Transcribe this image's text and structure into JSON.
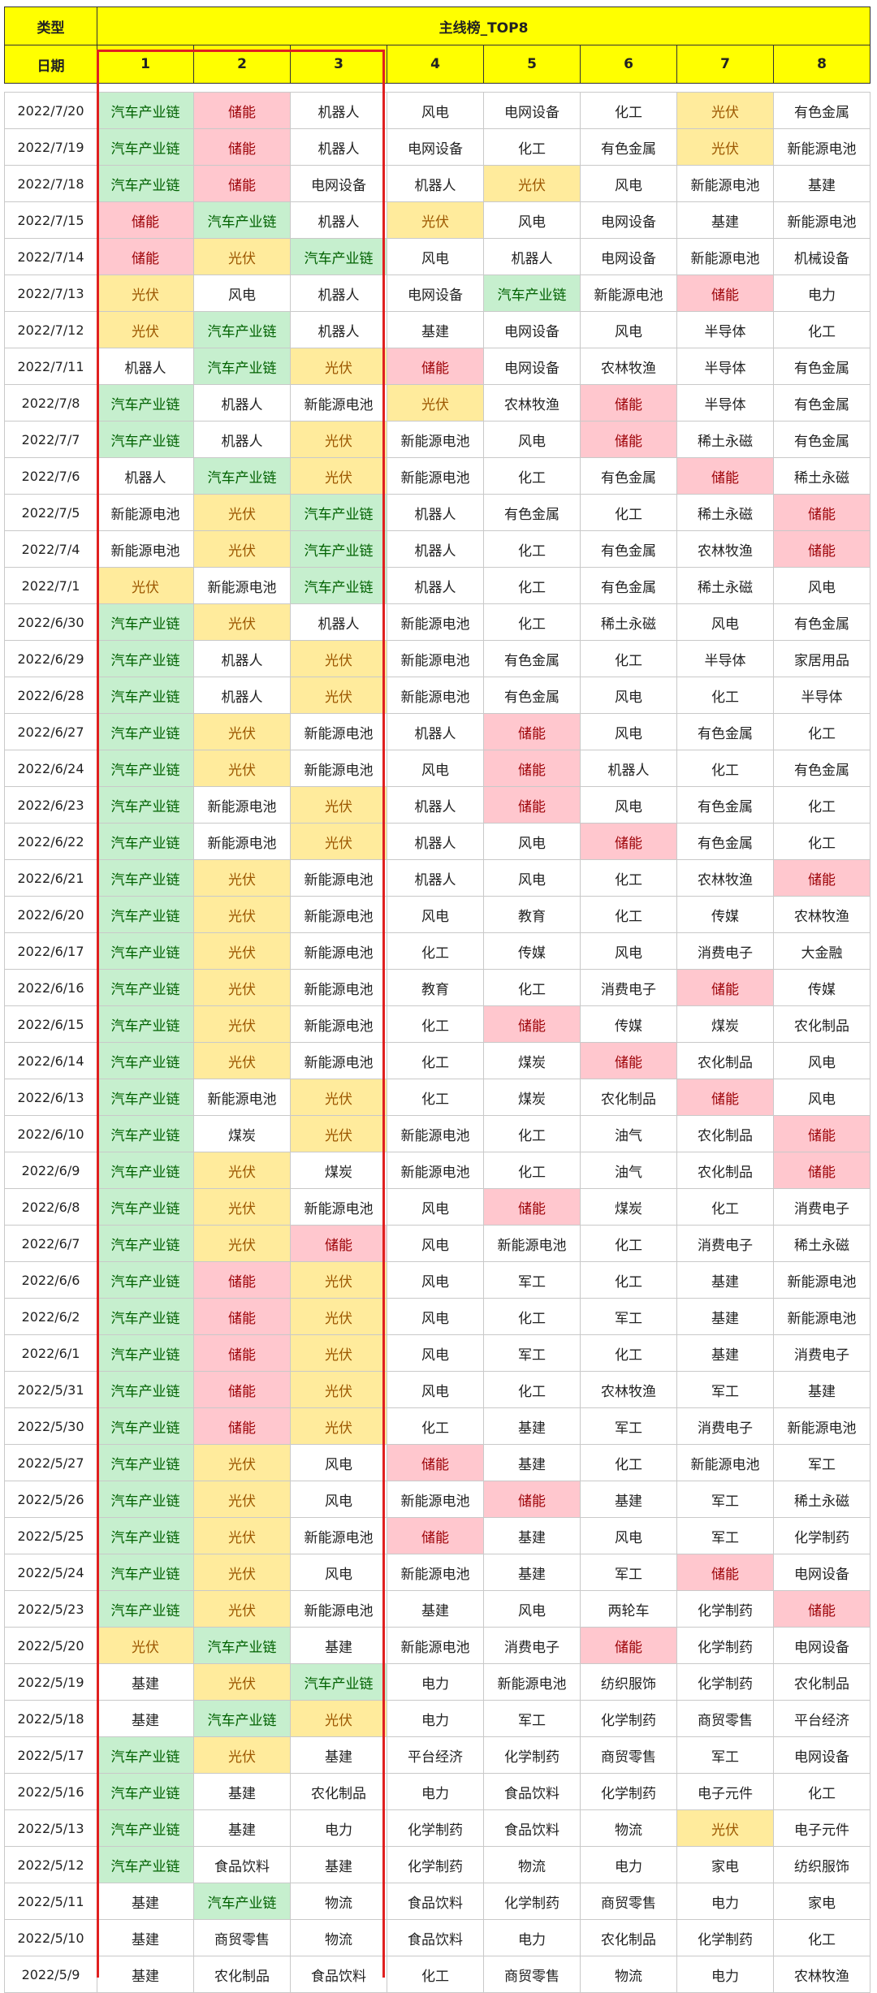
{
  "header": {
    "type_label": "类型",
    "title": "主线榜_TOP8",
    "date_label": "日期",
    "ranks": [
      "1",
      "2",
      "3",
      "4",
      "5",
      "6",
      "7",
      "8"
    ]
  },
  "highlight_colors": {
    "汽车产业链": "#c6efce",
    "光伏": "#ffeb9c",
    "储能": "#ffc7ce"
  },
  "rows": [
    {
      "date": "2022/7/20",
      "cells": [
        "汽车产业链",
        "储能",
        "机器人",
        "风电",
        "电网设备",
        "化工",
        "光伏",
        "有色金属"
      ]
    },
    {
      "date": "2022/7/19",
      "cells": [
        "汽车产业链",
        "储能",
        "机器人",
        "电网设备",
        "化工",
        "有色金属",
        "光伏",
        "新能源电池"
      ]
    },
    {
      "date": "2022/7/18",
      "cells": [
        "汽车产业链",
        "储能",
        "电网设备",
        "机器人",
        "光伏",
        "风电",
        "新能源电池",
        "基建"
      ]
    },
    {
      "date": "2022/7/15",
      "cells": [
        "储能",
        "汽车产业链",
        "机器人",
        "光伏",
        "风电",
        "电网设备",
        "基建",
        "新能源电池"
      ]
    },
    {
      "date": "2022/7/14",
      "cells": [
        "储能",
        "光伏",
        "汽车产业链",
        "风电",
        "机器人",
        "电网设备",
        "新能源电池",
        "机械设备"
      ]
    },
    {
      "date": "2022/7/13",
      "cells": [
        "光伏",
        "风电",
        "机器人",
        "电网设备",
        "汽车产业链",
        "新能源电池",
        "储能",
        "电力"
      ]
    },
    {
      "date": "2022/7/12",
      "cells": [
        "光伏",
        "汽车产业链",
        "机器人",
        "基建",
        "电网设备",
        "风电",
        "半导体",
        "化工"
      ]
    },
    {
      "date": "2022/7/11",
      "cells": [
        "机器人",
        "汽车产业链",
        "光伏",
        "储能",
        "电网设备",
        "农林牧渔",
        "半导体",
        "有色金属"
      ]
    },
    {
      "date": "2022/7/8",
      "cells": [
        "汽车产业链",
        "机器人",
        "新能源电池",
        "光伏",
        "农林牧渔",
        "储能",
        "半导体",
        "有色金属"
      ]
    },
    {
      "date": "2022/7/7",
      "cells": [
        "汽车产业链",
        "机器人",
        "光伏",
        "新能源电池",
        "风电",
        "储能",
        "稀土永磁",
        "有色金属"
      ]
    },
    {
      "date": "2022/7/6",
      "cells": [
        "机器人",
        "汽车产业链",
        "光伏",
        "新能源电池",
        "化工",
        "有色金属",
        "储能",
        "稀土永磁"
      ]
    },
    {
      "date": "2022/7/5",
      "cells": [
        "新能源电池",
        "光伏",
        "汽车产业链",
        "机器人",
        "有色金属",
        "化工",
        "稀土永磁",
        "储能"
      ]
    },
    {
      "date": "2022/7/4",
      "cells": [
        "新能源电池",
        "光伏",
        "汽车产业链",
        "机器人",
        "化工",
        "有色金属",
        "农林牧渔",
        "储能"
      ]
    },
    {
      "date": "2022/7/1",
      "cells": [
        "光伏",
        "新能源电池",
        "汽车产业链",
        "机器人",
        "化工",
        "有色金属",
        "稀土永磁",
        "风电"
      ]
    },
    {
      "date": "2022/6/30",
      "cells": [
        "汽车产业链",
        "光伏",
        "机器人",
        "新能源电池",
        "化工",
        "稀土永磁",
        "风电",
        "有色金属"
      ]
    },
    {
      "date": "2022/6/29",
      "cells": [
        "汽车产业链",
        "机器人",
        "光伏",
        "新能源电池",
        "有色金属",
        "化工",
        "半导体",
        "家居用品"
      ]
    },
    {
      "date": "2022/6/28",
      "cells": [
        "汽车产业链",
        "机器人",
        "光伏",
        "新能源电池",
        "有色金属",
        "风电",
        "化工",
        "半导体"
      ]
    },
    {
      "date": "2022/6/27",
      "cells": [
        "汽车产业链",
        "光伏",
        "新能源电池",
        "机器人",
        "储能",
        "风电",
        "有色金属",
        "化工"
      ]
    },
    {
      "date": "2022/6/24",
      "cells": [
        "汽车产业链",
        "光伏",
        "新能源电池",
        "风电",
        "储能",
        "机器人",
        "化工",
        "有色金属"
      ]
    },
    {
      "date": "2022/6/23",
      "cells": [
        "汽车产业链",
        "新能源电池",
        "光伏",
        "机器人",
        "储能",
        "风电",
        "有色金属",
        "化工"
      ]
    },
    {
      "date": "2022/6/22",
      "cells": [
        "汽车产业链",
        "新能源电池",
        "光伏",
        "机器人",
        "风电",
        "储能",
        "有色金属",
        "化工"
      ]
    },
    {
      "date": "2022/6/21",
      "cells": [
        "汽车产业链",
        "光伏",
        "新能源电池",
        "机器人",
        "风电",
        "化工",
        "农林牧渔",
        "储能"
      ]
    },
    {
      "date": "2022/6/20",
      "cells": [
        "汽车产业链",
        "光伏",
        "新能源电池",
        "风电",
        "教育",
        "化工",
        "传媒",
        "农林牧渔"
      ]
    },
    {
      "date": "2022/6/17",
      "cells": [
        "汽车产业链",
        "光伏",
        "新能源电池",
        "化工",
        "传媒",
        "风电",
        "消费电子",
        "大金融"
      ]
    },
    {
      "date": "2022/6/16",
      "cells": [
        "汽车产业链",
        "光伏",
        "新能源电池",
        "教育",
        "化工",
        "消费电子",
        "储能",
        "传媒"
      ]
    },
    {
      "date": "2022/6/15",
      "cells": [
        "汽车产业链",
        "光伏",
        "新能源电池",
        "化工",
        "储能",
        "传媒",
        "煤炭",
        "农化制品"
      ]
    },
    {
      "date": "2022/6/14",
      "cells": [
        "汽车产业链",
        "光伏",
        "新能源电池",
        "化工",
        "煤炭",
        "储能",
        "农化制品",
        "风电"
      ]
    },
    {
      "date": "2022/6/13",
      "cells": [
        "汽车产业链",
        "新能源电池",
        "光伏",
        "化工",
        "煤炭",
        "农化制品",
        "储能",
        "风电"
      ]
    },
    {
      "date": "2022/6/10",
      "cells": [
        "汽车产业链",
        "煤炭",
        "光伏",
        "新能源电池",
        "化工",
        "油气",
        "农化制品",
        "储能"
      ]
    },
    {
      "date": "2022/6/9",
      "cells": [
        "汽车产业链",
        "光伏",
        "煤炭",
        "新能源电池",
        "化工",
        "油气",
        "农化制品",
        "储能"
      ]
    },
    {
      "date": "2022/6/8",
      "cells": [
        "汽车产业链",
        "光伏",
        "新能源电池",
        "风电",
        "储能",
        "煤炭",
        "化工",
        "消费电子"
      ]
    },
    {
      "date": "2022/6/7",
      "cells": [
        "汽车产业链",
        "光伏",
        "储能",
        "风电",
        "新能源电池",
        "化工",
        "消费电子",
        "稀土永磁"
      ]
    },
    {
      "date": "2022/6/6",
      "cells": [
        "汽车产业链",
        "储能",
        "光伏",
        "风电",
        "军工",
        "化工",
        "基建",
        "新能源电池"
      ]
    },
    {
      "date": "2022/6/2",
      "cells": [
        "汽车产业链",
        "储能",
        "光伏",
        "风电",
        "化工",
        "军工",
        "基建",
        "新能源电池"
      ]
    },
    {
      "date": "2022/6/1",
      "cells": [
        "汽车产业链",
        "储能",
        "光伏",
        "风电",
        "军工",
        "化工",
        "基建",
        "消费电子"
      ]
    },
    {
      "date": "2022/5/31",
      "cells": [
        "汽车产业链",
        "储能",
        "光伏",
        "风电",
        "化工",
        "农林牧渔",
        "军工",
        "基建"
      ]
    },
    {
      "date": "2022/5/30",
      "cells": [
        "汽车产业链",
        "储能",
        "光伏",
        "化工",
        "基建",
        "军工",
        "消费电子",
        "新能源电池"
      ]
    },
    {
      "date": "2022/5/27",
      "cells": [
        "汽车产业链",
        "光伏",
        "风电",
        "储能",
        "基建",
        "化工",
        "新能源电池",
        "军工"
      ]
    },
    {
      "date": "2022/5/26",
      "cells": [
        "汽车产业链",
        "光伏",
        "风电",
        "新能源电池",
        "储能",
        "基建",
        "军工",
        "稀土永磁"
      ]
    },
    {
      "date": "2022/5/25",
      "cells": [
        "汽车产业链",
        "光伏",
        "新能源电池",
        "储能",
        "基建",
        "风电",
        "军工",
        "化学制药"
      ]
    },
    {
      "date": "2022/5/24",
      "cells": [
        "汽车产业链",
        "光伏",
        "风电",
        "新能源电池",
        "基建",
        "军工",
        "储能",
        "电网设备"
      ]
    },
    {
      "date": "2022/5/23",
      "cells": [
        "汽车产业链",
        "光伏",
        "新能源电池",
        "基建",
        "风电",
        "两轮车",
        "化学制药",
        "储能"
      ]
    },
    {
      "date": "2022/5/20",
      "cells": [
        "光伏",
        "汽车产业链",
        "基建",
        "新能源电池",
        "消费电子",
        "储能",
        "化学制药",
        "电网设备"
      ]
    },
    {
      "date": "2022/5/19",
      "cells": [
        "基建",
        "光伏",
        "汽车产业链",
        "电力",
        "新能源电池",
        "纺织服饰",
        "化学制药",
        "农化制品"
      ]
    },
    {
      "date": "2022/5/18",
      "cells": [
        "基建",
        "汽车产业链",
        "光伏",
        "电力",
        "军工",
        "化学制药",
        "商贸零售",
        "平台经济"
      ]
    },
    {
      "date": "2022/5/17",
      "cells": [
        "汽车产业链",
        "光伏",
        "基建",
        "平台经济",
        "化学制药",
        "商贸零售",
        "军工",
        "电网设备"
      ]
    },
    {
      "date": "2022/5/16",
      "cells": [
        "汽车产业链",
        "基建",
        "农化制品",
        "电力",
        "食品饮料",
        "化学制药",
        "电子元件",
        "化工"
      ]
    },
    {
      "date": "2022/5/13",
      "cells": [
        "汽车产业链",
        "基建",
        "电力",
        "化学制药",
        "食品饮料",
        "物流",
        "光伏",
        "电子元件"
      ]
    },
    {
      "date": "2022/5/12",
      "cells": [
        "汽车产业链",
        "食品饮料",
        "基建",
        "化学制药",
        "物流",
        "电力",
        "家电",
        "纺织服饰"
      ]
    },
    {
      "date": "2022/5/11",
      "cells": [
        "基建",
        "汽车产业链",
        "物流",
        "食品饮料",
        "化学制药",
        "商贸零售",
        "电力",
        "家电"
      ]
    },
    {
      "date": "2022/5/10",
      "cells": [
        "基建",
        "商贸零售",
        "物流",
        "食品饮料",
        "电力",
        "农化制品",
        "化学制药",
        "化工"
      ]
    },
    {
      "date": "2022/5/9",
      "cells": [
        "基建",
        "农化制品",
        "食品饮料",
        "化工",
        "商贸零售",
        "物流",
        "电力",
        "农林牧渔"
      ]
    }
  ]
}
